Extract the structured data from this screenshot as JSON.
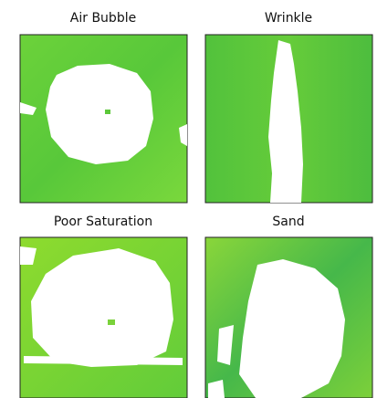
{
  "panels": [
    {
      "title": "Air Bubble"
    },
    {
      "title": "Wrinkle"
    },
    {
      "title": "Poor Saturation"
    },
    {
      "title": "Sand"
    }
  ]
}
